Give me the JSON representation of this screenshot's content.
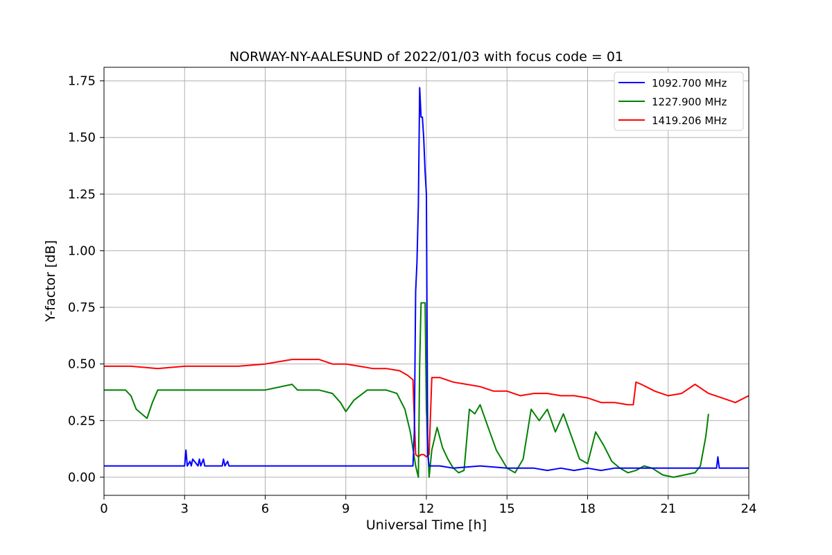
{
  "chart_data": {
    "type": "line",
    "title": "NORWAY-NY-AALESUND of 2022/01/03 with focus code = 01",
    "xlabel": "Universal Time [h]",
    "ylabel": "Y-factor [dB]",
    "xlim": [
      0,
      24
    ],
    "ylim": [
      -0.08,
      1.81
    ],
    "xticks": [
      0,
      3,
      6,
      9,
      12,
      15,
      18,
      21,
      24
    ],
    "xtick_labels": [
      "0",
      "3",
      "6",
      "9",
      "12",
      "15",
      "18",
      "21",
      "24"
    ],
    "yticks": [
      0,
      0.25,
      0.5,
      0.75,
      1.0,
      1.25,
      1.5,
      1.75
    ],
    "ytick_labels": [
      "0.00",
      "0.25",
      "0.50",
      "0.75",
      "1.00",
      "1.25",
      "1.50",
      "1.75"
    ],
    "grid": true,
    "legend_position": "top-right",
    "series": [
      {
        "name": "1092.700 MHz",
        "color": "#0000ff",
        "x": [
          0,
          3.0,
          3.05,
          3.1,
          3.2,
          3.25,
          3.3,
          3.5,
          3.55,
          3.6,
          3.7,
          3.75,
          3.8,
          4.4,
          4.45,
          4.5,
          4.6,
          4.65,
          4.7,
          11.0,
          11.5,
          11.55,
          11.6,
          11.65,
          11.7,
          11.75,
          11.8,
          11.85,
          11.9,
          11.95,
          12.0,
          12.05,
          12.1,
          12.2,
          12.5,
          13.0,
          14.0,
          15.0,
          16.0,
          16.5,
          17.0,
          17.5,
          18.0,
          18.5,
          19.0,
          20.0,
          21.0,
          22.0,
          22.8,
          22.85,
          22.9,
          23.0,
          24.0
        ],
        "y": [
          0.05,
          0.05,
          0.12,
          0.05,
          0.07,
          0.05,
          0.08,
          0.05,
          0.08,
          0.05,
          0.08,
          0.05,
          0.05,
          0.05,
          0.08,
          0.05,
          0.07,
          0.05,
          0.05,
          0.05,
          0.05,
          0.2,
          0.82,
          0.95,
          1.2,
          1.72,
          1.59,
          1.59,
          1.5,
          1.35,
          1.25,
          0.1,
          0.05,
          0.05,
          0.05,
          0.04,
          0.05,
          0.04,
          0.04,
          0.03,
          0.04,
          0.03,
          0.04,
          0.03,
          0.04,
          0.04,
          0.04,
          0.04,
          0.04,
          0.09,
          0.04,
          0.04,
          0.04
        ]
      },
      {
        "name": "1227.900 MHz",
        "color": "#008000",
        "x": [
          0,
          0.8,
          1.0,
          1.2,
          1.4,
          1.6,
          1.8,
          2.0,
          2.2,
          6.0,
          7.0,
          7.2,
          7.4,
          8.0,
          8.5,
          8.8,
          9.0,
          9.3,
          9.8,
          10.0,
          10.5,
          10.9,
          11.2,
          11.4,
          11.6,
          11.7,
          11.75,
          11.8,
          11.95,
          12.0,
          12.1,
          12.2,
          12.4,
          12.6,
          12.8,
          13.0,
          13.2,
          13.4,
          13.6,
          13.8,
          14.0,
          14.3,
          14.6,
          15.0,
          15.3,
          15.6,
          15.9,
          16.2,
          16.5,
          16.8,
          17.1,
          17.4,
          17.7,
          18.0,
          18.3,
          18.6,
          18.9,
          19.2,
          19.5,
          19.8,
          20.1,
          20.4,
          20.8,
          21.2,
          21.6,
          22.0,
          22.2,
          22.4,
          22.5
        ],
        "y": [
          0.385,
          0.385,
          0.36,
          0.3,
          0.28,
          0.26,
          0.33,
          0.385,
          0.385,
          0.385,
          0.41,
          0.385,
          0.385,
          0.385,
          0.37,
          0.33,
          0.29,
          0.34,
          0.385,
          0.385,
          0.385,
          0.37,
          0.3,
          0.2,
          0.05,
          0.0,
          0.5,
          0.77,
          0.77,
          0.3,
          0.0,
          0.12,
          0.22,
          0.13,
          0.08,
          0.04,
          0.02,
          0.03,
          0.3,
          0.28,
          0.32,
          0.22,
          0.12,
          0.04,
          0.02,
          0.08,
          0.3,
          0.25,
          0.3,
          0.2,
          0.28,
          0.18,
          0.08,
          0.06,
          0.2,
          0.14,
          0.07,
          0.04,
          0.02,
          0.03,
          0.05,
          0.04,
          0.01,
          0.0,
          0.01,
          0.02,
          0.05,
          0.18,
          0.28
        ]
      },
      {
        "name": "1419.206 MHz",
        "color": "#ff0000",
        "x": [
          0,
          1.0,
          2.0,
          3.0,
          4.0,
          5.0,
          6.0,
          6.5,
          7.0,
          7.5,
          8.0,
          8.5,
          9.0,
          9.5,
          10.0,
          10.5,
          11.0,
          11.3,
          11.5,
          11.6,
          11.7,
          11.8,
          11.9,
          12.0,
          12.1,
          12.2,
          12.5,
          13.0,
          13.5,
          14.0,
          14.5,
          15.0,
          15.5,
          16.0,
          16.5,
          17.0,
          17.5,
          18.0,
          18.5,
          19.0,
          19.5,
          19.7,
          19.8,
          20.0,
          20.5,
          21.0,
          21.5,
          22.0,
          22.5,
          23.0,
          23.5,
          24.0
        ],
        "y": [
          0.49,
          0.49,
          0.48,
          0.49,
          0.49,
          0.49,
          0.5,
          0.51,
          0.52,
          0.52,
          0.52,
          0.5,
          0.5,
          0.49,
          0.48,
          0.48,
          0.47,
          0.45,
          0.43,
          0.1,
          0.09,
          0.1,
          0.1,
          0.09,
          0.1,
          0.44,
          0.44,
          0.42,
          0.41,
          0.4,
          0.38,
          0.38,
          0.36,
          0.37,
          0.37,
          0.36,
          0.36,
          0.35,
          0.33,
          0.33,
          0.32,
          0.32,
          0.42,
          0.41,
          0.38,
          0.36,
          0.37,
          0.41,
          0.37,
          0.35,
          0.33,
          0.36
        ]
      }
    ]
  }
}
